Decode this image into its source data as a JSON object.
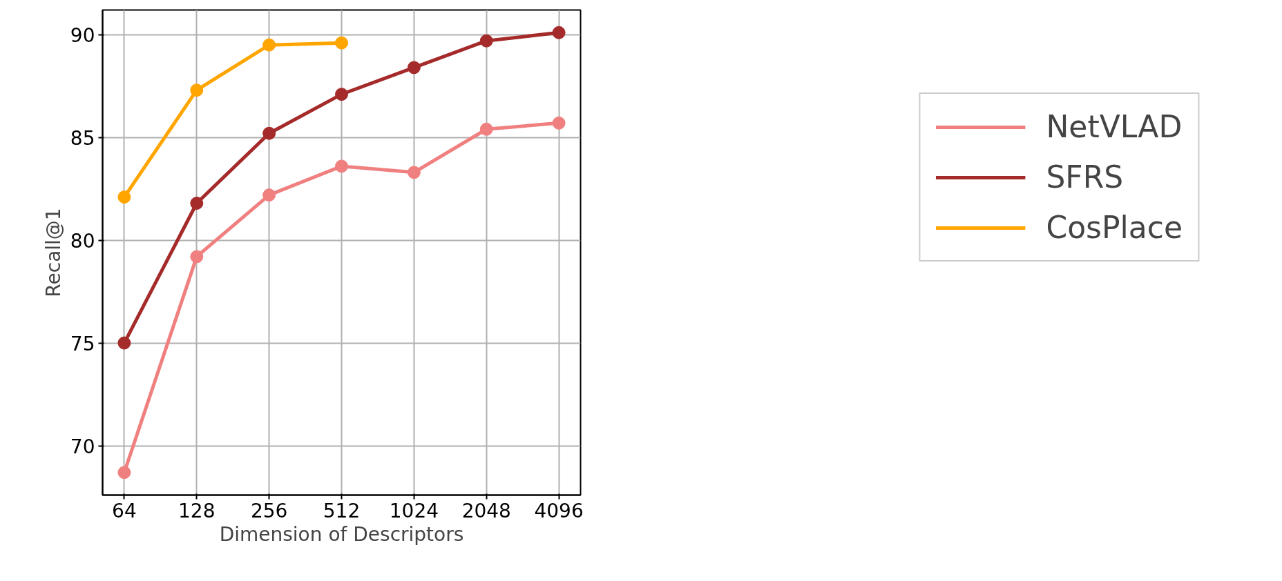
{
  "chart_data": {
    "type": "line",
    "xlabel": "Dimension of Descriptors",
    "ylabel": "Recall@1",
    "x": [
      64,
      128,
      256,
      512,
      1024,
      2048,
      4096
    ],
    "series": [
      {
        "name": "NetVLAD",
        "color": "#f08080",
        "values": [
          68.7,
          79.2,
          82.2,
          83.6,
          83.3,
          85.4,
          85.7
        ]
      },
      {
        "name": "SFRS",
        "color": "#a52a2a",
        "values": [
          75.0,
          81.8,
          85.2,
          87.1,
          88.4,
          89.7,
          90.1
        ]
      },
      {
        "name": "CosPlace",
        "color": "#ffa500",
        "values": [
          82.1,
          87.3,
          89.5,
          89.6,
          null,
          null,
          null
        ]
      }
    ],
    "log": "x",
    "xlim": [
      52,
      5040
    ],
    "ylim": [
      67.6,
      91.2
    ],
    "xticks": [
      64,
      128,
      256,
      512,
      1024,
      2048,
      4096
    ],
    "yticks": [
      70,
      75,
      80,
      85,
      90
    ],
    "grid": true,
    "legend": "right",
    "marker": "circle",
    "line_style": "solid"
  }
}
